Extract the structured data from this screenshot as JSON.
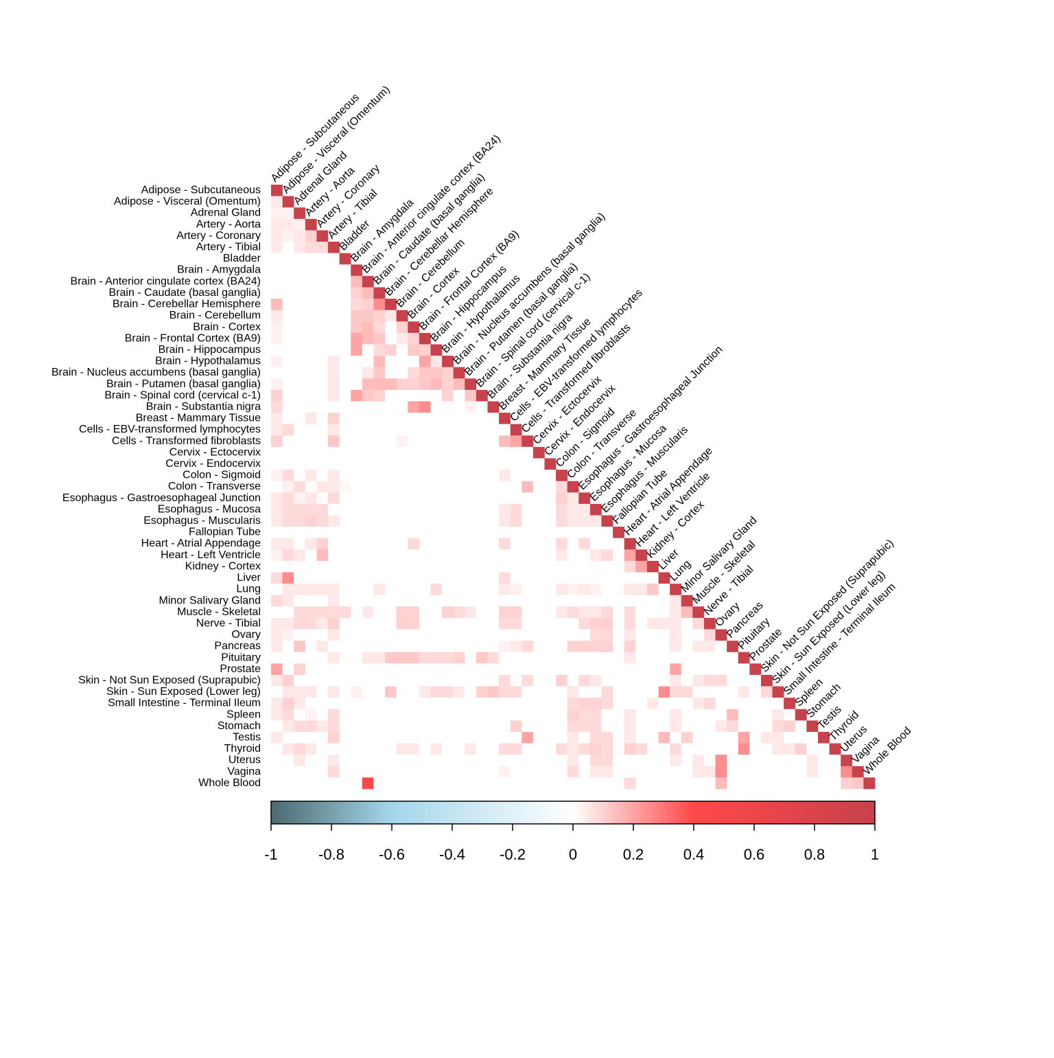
{
  "chart_data": {
    "type": "corrplot",
    "labels": [
      "Adipose - Subcutaneous",
      "Adipose - Visceral (Omentum)",
      "Adrenal Gland",
      "Artery - Aorta",
      "Artery - Coronary",
      "Artery - Tibial",
      "Bladder",
      "Brain - Amygdala",
      "Brain - Anterior cingulate cortex (BA24)",
      "Brain - Caudate (basal ganglia)",
      "Brain - Cerebellar Hemisphere",
      "Brain - Cerebellum",
      "Brain - Cortex",
      "Brain - Frontal Cortex (BA9)",
      "Brain - Hippocampus",
      "Brain - Hypothalamus",
      "Brain - Nucleus accumbens (basal ganglia)",
      "Brain - Putamen (basal ganglia)",
      "Brain - Spinal cord (cervical c-1)",
      "Brain - Substantia nigra",
      "Breast - Mammary Tissue",
      "Cells - EBV-transformed lymphocytes",
      "Cells - Transformed fibroblasts",
      "Cervix - Ectocervix",
      "Cervix - Endocervix",
      "Colon - Sigmoid",
      "Colon - Transverse",
      "Esophagus - Gastroesophageal Junction",
      "Esophagus - Mucosa",
      "Esophagus - Muscularis",
      "Fallopian Tube",
      "Heart - Atrial Appendage",
      "Heart - Left Ventricle",
      "Kidney - Cortex",
      "Liver",
      "Lung",
      "Minor Salivary Gland",
      "Muscle - Skeletal",
      "Nerve - Tibial",
      "Ovary",
      "Pancreas",
      "Pituitary",
      "Prostate",
      "Skin - Not Sun Exposed (Suprapubic)",
      "Skin - Sun Exposed (Lower leg)",
      "Small Intestine - Terminal Ileum",
      "Spleen",
      "Stomach",
      "Testis",
      "Thyroid",
      "Uterus",
      "Vagina",
      "Whole Blood"
    ],
    "matrix": [
      [
        1
      ],
      [
        0.05,
        1
      ],
      [
        0.03,
        0.03,
        1
      ],
      [
        0.05,
        0.05,
        0.03,
        1
      ],
      [
        0.05,
        0.03,
        0.05,
        0.1,
        1
      ],
      [
        0.05,
        0,
        0.05,
        0.08,
        0.08,
        1
      ],
      [
        0,
        0,
        0,
        0,
        0,
        0,
        1
      ],
      [
        0,
        0,
        0,
        0,
        0,
        0,
        0,
        1
      ],
      [
        0,
        0,
        0,
        0,
        0,
        0,
        0,
        0.15,
        1
      ],
      [
        0,
        0,
        0,
        0,
        0,
        0,
        0,
        0.1,
        0.15,
        1
      ],
      [
        0.15,
        0,
        0,
        0,
        0,
        0,
        0,
        0.08,
        0.1,
        0.25,
        1
      ],
      [
        0.05,
        0,
        0,
        0,
        0,
        0,
        0,
        0.12,
        0.12,
        0.1,
        0.05,
        1
      ],
      [
        0.03,
        0,
        0,
        0,
        0,
        0,
        0,
        0.12,
        0.15,
        0.08,
        0,
        0.1,
        1
      ],
      [
        0.03,
        0,
        0,
        0,
        0,
        0,
        0,
        0.2,
        0.15,
        0.12,
        0,
        0.05,
        0.1,
        1
      ],
      [
        0,
        0,
        0,
        0,
        0,
        0,
        0,
        0.2,
        0,
        0.08,
        0.1,
        0,
        0.12,
        0.1,
        1
      ],
      [
        0.03,
        0,
        0,
        0,
        0,
        0.05,
        0,
        0,
        0,
        0.15,
        0,
        0,
        0,
        0.2,
        0.05,
        1
      ],
      [
        0,
        0,
        0,
        0,
        0,
        0.05,
        0,
        0,
        0.05,
        0.12,
        0,
        0,
        0.08,
        0.12,
        0.12,
        0.1,
        1
      ],
      [
        0.03,
        0,
        0,
        0,
        0,
        0.05,
        0,
        0,
        0.15,
        0.15,
        0.15,
        0.1,
        0.1,
        0.12,
        0.15,
        0.1,
        0.15,
        1
      ],
      [
        0.1,
        0,
        0,
        0,
        0,
        0.05,
        0,
        0.2,
        0.12,
        0.1,
        0,
        0,
        0,
        0,
        0,
        0.1,
        0,
        0.12,
        1
      ],
      [
        0.08,
        0,
        0,
        0,
        0,
        0,
        0,
        0,
        0,
        0,
        0,
        0,
        0.2,
        0.25,
        0,
        0,
        0,
        0.03,
        0,
        1
      ],
      [
        0.05,
        0,
        0,
        0.05,
        0,
        0.1,
        0,
        0,
        0,
        0,
        0,
        0,
        0,
        0,
        0,
        0,
        0,
        0,
        0,
        0,
        1
      ],
      [
        0.05,
        0.08,
        0,
        0,
        0,
        0.05,
        0,
        0,
        0,
        0,
        0,
        0,
        0,
        0,
        0,
        0,
        0,
        0,
        0,
        0,
        0,
        1
      ],
      [
        0.1,
        0,
        0,
        0,
        0,
        0.12,
        0,
        0,
        0,
        0,
        0,
        0.03,
        0,
        0,
        0,
        0,
        0,
        0,
        0,
        0,
        0.15,
        0.2,
        1
      ],
      [
        0,
        0,
        0,
        0,
        0,
        0,
        0,
        0,
        0,
        0,
        0,
        0,
        0,
        0,
        0,
        0,
        0,
        0,
        0,
        0,
        0,
        0,
        0,
        1
      ],
      [
        0,
        0,
        0,
        0,
        0,
        0,
        0,
        0,
        0,
        0,
        0,
        0,
        0,
        0,
        0,
        0,
        0,
        0,
        0,
        0,
        0,
        0,
        0,
        0,
        1
      ],
      [
        0.03,
        0.08,
        0,
        0.05,
        0,
        0.05,
        0,
        0,
        0,
        0,
        0,
        0,
        0,
        0,
        0,
        0,
        0,
        0,
        0,
        0,
        0.05,
        0,
        0,
        0,
        0,
        1
      ],
      [
        0,
        0.03,
        0.08,
        0,
        0.05,
        0.05,
        0.02,
        0,
        0,
        0,
        0,
        0,
        0,
        0,
        0,
        0,
        0,
        0,
        0,
        0,
        0,
        0,
        0.15,
        0,
        0,
        0.08,
        1
      ],
      [
        0.05,
        0.08,
        0.03,
        0.05,
        0,
        0.08,
        0,
        0,
        0,
        0,
        0,
        0,
        0,
        0,
        0,
        0,
        0,
        0,
        0,
        0,
        0,
        0,
        0,
        0,
        0,
        0.1,
        0.05,
        1
      ],
      [
        0.05,
        0.08,
        0.08,
        0.08,
        0.08,
        0,
        0,
        0,
        0,
        0,
        0,
        0,
        0,
        0,
        0,
        0,
        0,
        0,
        0,
        0,
        0.05,
        0.08,
        0,
        0,
        0,
        0.08,
        0.05,
        0.05,
        1
      ],
      [
        0.05,
        0.08,
        0.08,
        0.1,
        0.08,
        0.05,
        0,
        0,
        0,
        0,
        0,
        0,
        0,
        0,
        0,
        0,
        0,
        0,
        0,
        0,
        0.05,
        0.08,
        0,
        0,
        0,
        0.08,
        0.05,
        0.05,
        0.05,
        1
      ],
      [
        0,
        0,
        0,
        0,
        0,
        0,
        0,
        0,
        0,
        0,
        0,
        0,
        0,
        0,
        0,
        0,
        0,
        0,
        0,
        0,
        0,
        0,
        0,
        0,
        0,
        0,
        0,
        0,
        0,
        0,
        1
      ],
      [
        0.05,
        0.05,
        0,
        0.05,
        0.1,
        0,
        0,
        0,
        0,
        0,
        0,
        0,
        0.08,
        0,
        0,
        0,
        0,
        0,
        0,
        0,
        0.08,
        0,
        0,
        0,
        0,
        0.08,
        0,
        0.08,
        0,
        0,
        0,
        1
      ],
      [
        0.03,
        0.08,
        0.05,
        0,
        0.15,
        0,
        0,
        0,
        0,
        0,
        0,
        0,
        0,
        0,
        0,
        0,
        0,
        0,
        0,
        0,
        0,
        0,
        0,
        0,
        0,
        0.05,
        0,
        0,
        0.05,
        0.08,
        0,
        0.2,
        1
      ],
      [
        0,
        0,
        0,
        0,
        0,
        0,
        0,
        0,
        0,
        0,
        0,
        0,
        0,
        0,
        0,
        0,
        0,
        0,
        0,
        0,
        0,
        0,
        0,
        0,
        0,
        0,
        0,
        0,
        0,
        0,
        0,
        0.08,
        0.2,
        1
      ],
      [
        0.08,
        0.25,
        0,
        0,
        0,
        0,
        0,
        0,
        0,
        0,
        0,
        0,
        0,
        0,
        0,
        0,
        0,
        0,
        0,
        0,
        0.08,
        0,
        0,
        0,
        0,
        0,
        0,
        0,
        0,
        0,
        0,
        0,
        0,
        0,
        1
      ],
      [
        0,
        0.05,
        0.05,
        0.05,
        0.05,
        0.05,
        0,
        0,
        0,
        0.05,
        0,
        0,
        0,
        0,
        0.08,
        0,
        0,
        0,
        0,
        0,
        0.05,
        0.03,
        0,
        0,
        0,
        0.05,
        0.03,
        0.05,
        0.03,
        0,
        0,
        0.05,
        0.05,
        0.12,
        0,
        1
      ],
      [
        0.08,
        0.05,
        0,
        0,
        0,
        0.05,
        0,
        0,
        0,
        0,
        0,
        0,
        0,
        0,
        0,
        0,
        0,
        0,
        0,
        0,
        0,
        0,
        0,
        0,
        0,
        0,
        0,
        0,
        0,
        0,
        0,
        0,
        0,
        0,
        0,
        0.05,
        1
      ],
      [
        0,
        0,
        0.08,
        0.08,
        0.08,
        0.08,
        0.08,
        0,
        0.05,
        0,
        0,
        0.1,
        0.1,
        0,
        0,
        0.1,
        0.08,
        0.05,
        0,
        0,
        0.1,
        0.1,
        0,
        0,
        0,
        0.05,
        0.08,
        0.05,
        0.05,
        0.08,
        0,
        0.08,
        0,
        0,
        0,
        0.05,
        0.15,
        1
      ],
      [
        0.05,
        0.05,
        0.08,
        0.08,
        0.05,
        0.1,
        0,
        0,
        0,
        0,
        0,
        0.1,
        0.1,
        0,
        0,
        0,
        0,
        0,
        0,
        0,
        0.08,
        0.08,
        0,
        0,
        0,
        0,
        0,
        0.08,
        0.1,
        0.1,
        0,
        0.08,
        0,
        0.05,
        0.05,
        0.05,
        0,
        0.08,
        1
      ],
      [
        0.05,
        0.03,
        0,
        0,
        0,
        0.05,
        0,
        0,
        0,
        0,
        0,
        0,
        0,
        0,
        0,
        0,
        0,
        0,
        0,
        0,
        0,
        0,
        0,
        0,
        0,
        0,
        0,
        0,
        0.08,
        0.08,
        0,
        0.05,
        0,
        0,
        0,
        0.05,
        0,
        0,
        0.08,
        1
      ],
      [
        0.05,
        0,
        0.12,
        0,
        0.05,
        0,
        0,
        0,
        0,
        0,
        0,
        0,
        0,
        0,
        0,
        0,
        0,
        0,
        0,
        0,
        0.03,
        0.05,
        0.08,
        0,
        0,
        0,
        0.1,
        0.1,
        0.1,
        0.1,
        0,
        0.1,
        0,
        0,
        0,
        0.05,
        0,
        0.05,
        0.05,
        0,
        1
      ],
      [
        0,
        0,
        0,
        0,
        0,
        0.05,
        0,
        0,
        0.05,
        0.05,
        0.12,
        0.12,
        0.12,
        0.08,
        0.08,
        0.08,
        0.1,
        0,
        0.12,
        0.08,
        0,
        0,
        0,
        0,
        0,
        0,
        0,
        0,
        0,
        0,
        0,
        0.05,
        0,
        0,
        0,
        0,
        0,
        0,
        0,
        0,
        0,
        1
      ],
      [
        0.2,
        0,
        0.1,
        0,
        0,
        0,
        0,
        0,
        0,
        0,
        0,
        0,
        0,
        0,
        0,
        0,
        0,
        0,
        0,
        0,
        0,
        0,
        0,
        0,
        0,
        0,
        0,
        0,
        0,
        0,
        0,
        0,
        0,
        0,
        0,
        0.2,
        0,
        0,
        0,
        0,
        0,
        0,
        1
      ],
      [
        0.05,
        0.1,
        0,
        0,
        0,
        0,
        0,
        0,
        0,
        0,
        0,
        0,
        0,
        0,
        0,
        0,
        0,
        0,
        0,
        0,
        0.08,
        0,
        0.08,
        0,
        0,
        0.1,
        0,
        0.08,
        0.05,
        0,
        0,
        0,
        0,
        0,
        0,
        0.05,
        0,
        0.05,
        0.08,
        0.08,
        0,
        0,
        0,
        1
      ],
      [
        0,
        0.05,
        0.05,
        0.05,
        0,
        0.05,
        0,
        0.03,
        0,
        0,
        0.12,
        0,
        0,
        0.05,
        0.08,
        0.08,
        0.05,
        0,
        0.1,
        0.12,
        0.08,
        0.08,
        0,
        0,
        0,
        0,
        0.05,
        0,
        0,
        0.08,
        0,
        0,
        0,
        0,
        0.25,
        0.08,
        0.08,
        0,
        0,
        0,
        0,
        0.05,
        0,
        0.08,
        1
      ],
      [
        0.05,
        0.1,
        0.05,
        0,
        0,
        0,
        0,
        0,
        0,
        0,
        0,
        0,
        0,
        0,
        0,
        0,
        0,
        0,
        0,
        0,
        0,
        0,
        0,
        0,
        0,
        0,
        0.08,
        0.1,
        0.1,
        0.08,
        0,
        0,
        0,
        0.05,
        0,
        0,
        0,
        0.05,
        0.08,
        0,
        0,
        0,
        0,
        0,
        0,
        1
      ],
      [
        0.05,
        0.08,
        0,
        0.03,
        0,
        0.08,
        0,
        0,
        0,
        0,
        0,
        0,
        0,
        0,
        0,
        0,
        0,
        0,
        0,
        0,
        0,
        0,
        0,
        0,
        0,
        0,
        0.1,
        0.08,
        0.08,
        0,
        0,
        0.05,
        0,
        0,
        0,
        0.05,
        0,
        0,
        0,
        0,
        0.15,
        0,
        0,
        0,
        0.05,
        0,
        1
      ],
      [
        0,
        0.05,
        0.08,
        0.08,
        0.05,
        0.08,
        0,
        0,
        0,
        0,
        0,
        0,
        0,
        0,
        0,
        0,
        0,
        0,
        0,
        0,
        0,
        0.1,
        0,
        0,
        0,
        0,
        0.08,
        0.08,
        0.08,
        0,
        0,
        0.05,
        0,
        0,
        0,
        0.05,
        0,
        0,
        0,
        0.05,
        0.08,
        0,
        0,
        0,
        0.08,
        0.1,
        0,
        1
      ],
      [
        0.05,
        0,
        0,
        0,
        0,
        0.1,
        0,
        0,
        0,
        0,
        0,
        0,
        0,
        0,
        0,
        0,
        0,
        0,
        0,
        0,
        0,
        0,
        0.2,
        0,
        0,
        0,
        0.05,
        0,
        0.08,
        0.08,
        0,
        0.05,
        0,
        0,
        0.15,
        0,
        0.1,
        0,
        0,
        0,
        0,
        0.2,
        0,
        0.05,
        0.05,
        0,
        0,
        0,
        1
      ],
      [
        0,
        0.05,
        0.08,
        0.05,
        0,
        0,
        0,
        0,
        0,
        0,
        0,
        0.05,
        0.05,
        0,
        0.05,
        0,
        0,
        0.05,
        0,
        0,
        0.08,
        0.08,
        0,
        0,
        0,
        0.08,
        0.05,
        0.08,
        0.1,
        0.08,
        0,
        0.1,
        0.08,
        0,
        0,
        0.08,
        0,
        0,
        0,
        0,
        0,
        0.25,
        0,
        0,
        0.05,
        0.05,
        0.1,
        0,
        0,
        1
      ],
      [
        0,
        0,
        0.05,
        0,
        0,
        0.05,
        0,
        0,
        0,
        0,
        0,
        0,
        0,
        0,
        0,
        0,
        0,
        0,
        0,
        0,
        0,
        0,
        0,
        0,
        0,
        0,
        0.05,
        0,
        0.08,
        0.08,
        0,
        0,
        0,
        0,
        0,
        0.05,
        0,
        0.05,
        0,
        0.25,
        0,
        0,
        0,
        0,
        0,
        0,
        0,
        0.05,
        0,
        0,
        1
      ],
      [
        0,
        0,
        0,
        0,
        0,
        0.08,
        0,
        0,
        0,
        0,
        0,
        0,
        0,
        0,
        0,
        0,
        0,
        0,
        0,
        0,
        0.03,
        0,
        0,
        0,
        0,
        0,
        0.08,
        0,
        0.05,
        0.05,
        0,
        0,
        0,
        0,
        0,
        0,
        0,
        0.05,
        0.05,
        0.25,
        0,
        0,
        0,
        0,
        0,
        0,
        0,
        0.05,
        0,
        0,
        0.25,
        1
      ],
      [
        0,
        0,
        0,
        0,
        0,
        0,
        0,
        0,
        0.45,
        0,
        0,
        0,
        0,
        0,
        0,
        0,
        0,
        0,
        0,
        0,
        0,
        0,
        0,
        0,
        0,
        0,
        0,
        0,
        0,
        0,
        0,
        0.08,
        0,
        0,
        0,
        0,
        0,
        0,
        0,
        0.15,
        0,
        0,
        0,
        0,
        0,
        0,
        0,
        0,
        0,
        0,
        0.1,
        0.12,
        1
      ]
    ],
    "colormap": [
      [
        -1,
        "#4b6a70"
      ],
      [
        -0.6,
        "#a3d6ea"
      ],
      [
        0,
        "#ffffff"
      ],
      [
        0.4,
        "#ff4848"
      ],
      [
        1,
        "#c7424b"
      ]
    ],
    "clim": [
      -1,
      1
    ],
    "colorbar_ticks": [
      -1,
      -0.8,
      -0.6,
      -0.4,
      -0.2,
      0,
      0.2,
      0.4,
      0.6,
      0.8,
      1
    ]
  }
}
